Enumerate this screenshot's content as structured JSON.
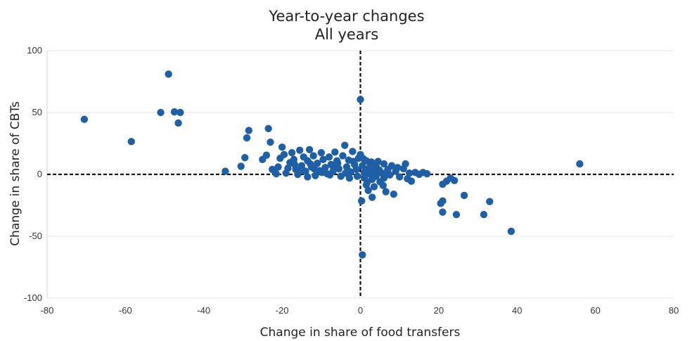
{
  "chart_data": {
    "type": "scatter",
    "title": "Year-to-year changes",
    "subtitle": "All years",
    "xlabel": "Change in share of food transfers",
    "ylabel": "Change in share of CBTs",
    "xlim": [
      -80,
      80
    ],
    "ylim": [
      -100,
      100
    ],
    "xticks": [
      -80,
      -60,
      -40,
      -20,
      0,
      20,
      40,
      60,
      80
    ],
    "yticks": [
      -100,
      -50,
      0,
      50,
      100
    ],
    "grid": true,
    "reference_lines": {
      "x": 0,
      "y": 0,
      "style": "dashed"
    },
    "colors": {
      "points": "#1f5fa6",
      "reference": "#111111"
    },
    "points": [
      [
        -70.5,
        44.5
      ],
      [
        -58.5,
        26.5
      ],
      [
        -51,
        50
      ],
      [
        -49,
        81
      ],
      [
        -47.5,
        50.5
      ],
      [
        -46.5,
        41.5
      ],
      [
        -46,
        50
      ],
      [
        -34.5,
        2.5
      ],
      [
        -30.5,
        6.5
      ],
      [
        -29.5,
        13.5
      ],
      [
        -29,
        29.5
      ],
      [
        -28.5,
        35.5
      ],
      [
        -25,
        12
      ],
      [
        -24,
        15.5
      ],
      [
        -23.5,
        37
      ],
      [
        -23,
        26
      ],
      [
        -22,
        3
      ],
      [
        -21.5,
        0.5
      ],
      [
        -21,
        6
      ],
      [
        -20.5,
        13
      ],
      [
        -20,
        22
      ],
      [
        -19,
        1
      ],
      [
        -18,
        9.5
      ],
      [
        -17.5,
        17.5
      ],
      [
        -17,
        12
      ],
      [
        -16.5,
        4
      ],
      [
        -16,
        0
      ],
      [
        -15.5,
        19.5
      ],
      [
        -15,
        7
      ],
      [
        -14.5,
        14
      ],
      [
        -14,
        2.5
      ],
      [
        -13.5,
        11
      ],
      [
        -13,
        20
      ],
      [
        -12.5,
        6
      ],
      [
        -12,
        15
      ],
      [
        -11.5,
        -1
      ],
      [
        -11,
        9
      ],
      [
        -10.5,
        3
      ],
      [
        -10,
        17.5
      ],
      [
        -9.5,
        12
      ],
      [
        -9,
        5.5
      ],
      [
        -8.5,
        0.5
      ],
      [
        -8,
        14
      ],
      [
        -7.5,
        8
      ],
      [
        -7,
        2.5
      ],
      [
        -6.5,
        18
      ],
      [
        -6,
        11
      ],
      [
        -5.5,
        4.5
      ],
      [
        -5,
        -1.5
      ],
      [
        -4.5,
        15
      ],
      [
        -4,
        23.5
      ],
      [
        -3.5,
        6
      ],
      [
        -3,
        11.5
      ],
      [
        -2.5,
        2
      ],
      [
        -2,
        18.5
      ],
      [
        -1.5,
        8
      ],
      [
        -1,
        4
      ],
      [
        -0.5,
        13
      ],
      [
        0,
        16
      ],
      [
        0,
        60.5
      ],
      [
        0.3,
        -21.5
      ],
      [
        0.5,
        -65
      ],
      [
        0.5,
        7
      ],
      [
        1,
        1.5
      ],
      [
        1,
        -3
      ],
      [
        1.5,
        11
      ],
      [
        1.5,
        -8.5
      ],
      [
        2,
        4.5
      ],
      [
        2,
        -13
      ],
      [
        2.5,
        0
      ],
      [
        2.5,
        8.5
      ],
      [
        3,
        -4
      ],
      [
        3,
        -18.5
      ],
      [
        3.5,
        2
      ],
      [
        3.5,
        -10
      ],
      [
        4,
        6.5
      ],
      [
        4,
        -1.5
      ],
      [
        4.5,
        10.5
      ],
      [
        5,
        -6
      ],
      [
        5.5,
        1
      ],
      [
        6,
        8.5
      ],
      [
        6,
        -3
      ],
      [
        6.5,
        -14
      ],
      [
        7,
        4
      ],
      [
        7.5,
        -0.5
      ],
      [
        8,
        7
      ],
      [
        8.5,
        -16
      ],
      [
        9,
        2.5
      ],
      [
        10,
        -2
      ],
      [
        11,
        4.5
      ],
      [
        11.5,
        8.5
      ],
      [
        12,
        -3.5
      ],
      [
        13,
        -5.5
      ],
      [
        14,
        1.5
      ],
      [
        15,
        0
      ],
      [
        16,
        1.5
      ],
      [
        17,
        0.5
      ],
      [
        20.5,
        -23.5
      ],
      [
        21,
        -21.5
      ],
      [
        21,
        -30.5
      ],
      [
        21,
        -8
      ],
      [
        22,
        -5.5
      ],
      [
        23,
        -3
      ],
      [
        24,
        -5
      ],
      [
        24.5,
        -32.5
      ],
      [
        26.5,
        -17
      ],
      [
        31.5,
        -32.5
      ],
      [
        33,
        -22
      ],
      [
        38.5,
        -46
      ],
      [
        56,
        8.5
      ],
      [
        -22.5,
        4
      ],
      [
        -18.5,
        5
      ],
      [
        -12.8,
        8.5
      ],
      [
        -9.8,
        1.5
      ],
      [
        -6.8,
        5
      ],
      [
        -3.8,
        1
      ],
      [
        -1.8,
        10.5
      ],
      [
        0.8,
        12.5
      ],
      [
        2.8,
        10
      ],
      [
        4.8,
        3.5
      ],
      [
        -14.8,
        3.5
      ],
      [
        -11.8,
        4.5
      ],
      [
        -7.8,
        -0.5
      ],
      [
        -2.8,
        -3
      ],
      [
        1.8,
        -6
      ],
      [
        5.8,
        -9
      ],
      [
        9.5,
        5.5
      ],
      [
        12.5,
        1
      ],
      [
        -5.8,
        9
      ],
      [
        -0.8,
        -1.5
      ],
      [
        3.2,
        5.5
      ],
      [
        6.8,
        2
      ],
      [
        -16.8,
        8
      ],
      [
        -19.5,
        16
      ],
      [
        -13.5,
        -2
      ]
    ]
  }
}
